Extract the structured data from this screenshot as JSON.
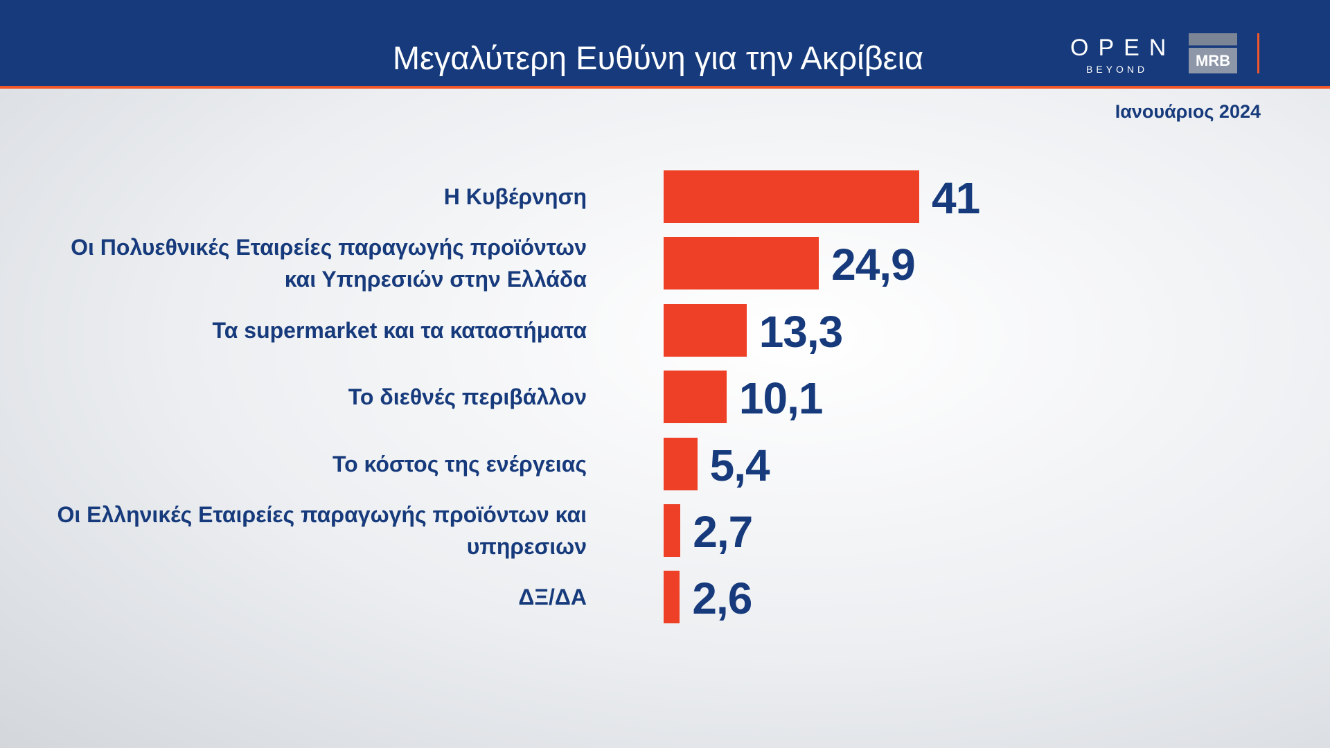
{
  "chart_data": {
    "type": "bar",
    "orientation": "horizontal",
    "title": "Μεγαλύτερη Ευθύνη για την Ακρίβεια",
    "subtitle": "Ιανουάριος 2024",
    "categories": [
      "Η Κυβέρνηση",
      "Οι Πολυεθνικές Εταιρείες παραγωγής προϊόντων και Υπηρεσιών στην Ελλάδα",
      "Τα supermarket και τα καταστήματα",
      "Το διεθνές περιβάλλον",
      "Το κόστος της ενέργειας",
      "Οι Ελληνικές Εταιρείες παραγωγής προϊόντων και υπηρεσιων",
      "ΔΞ/ΔΑ"
    ],
    "values": [
      41,
      24.9,
      13.3,
      10.1,
      5.4,
      2.7,
      2.6
    ],
    "value_labels": [
      "41",
      "24,9",
      "13,3",
      "10,1",
      "5,4",
      "2,7",
      "2,6"
    ],
    "color": "#ee4027"
  },
  "logos": {
    "open": "OPEN",
    "beyond": "BEYOND",
    "mrb": "MRB"
  }
}
